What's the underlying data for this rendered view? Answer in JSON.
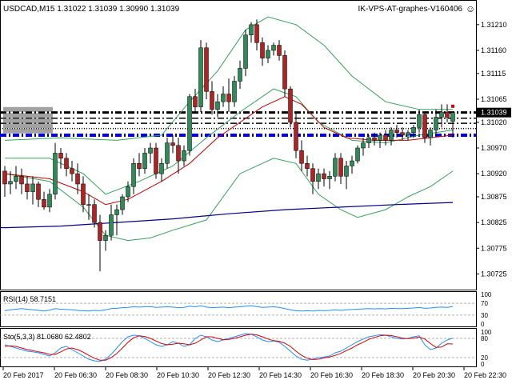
{
  "header": {
    "symbol_info": "USDCAD,M15  1.31022 1.31039 1.30990 1.31039",
    "indicator_name": "IK-VPS-AT-graphes-V160406",
    "smiley": "☺"
  },
  "rsi": {
    "label": "RSI(14) 58.7151"
  },
  "stoch": {
    "label": "Sto(5,3,3) 81.0680 62.4802"
  },
  "colors": {
    "bull": "#2e8b57",
    "bear": "#b22222",
    "bollinger": "#33a35a",
    "ma_fast": "#cc0000",
    "ma_slow": "#00008b",
    "rsi_line": "#1e90ff",
    "stoch_main": "#1e90ff",
    "stoch_signal": "#dd0000",
    "level_black": "#000000",
    "level_blue": "#0000ee"
  },
  "chart_data": [
    {
      "type": "candlestick",
      "title": "USDCAD,M15  1.31022 1.31039 1.30990 1.31039",
      "ylim": [
        1.3071,
        1.3123
      ],
      "y_ticks": [
        1.3121,
        1.3116,
        1.31115,
        1.31065,
        1.3102,
        1.3097,
        1.3092,
        1.30875,
        1.30825,
        1.30775,
        1.30725
      ],
      "current_price": "1.31039",
      "x_labels": [
        "20 Feb 2017",
        "20 Feb 06:30",
        "20 Feb 08:30",
        "20 Feb 10:30",
        "20 Feb 12:30",
        "20 Feb 14:30",
        "20 Feb 16:30",
        "20 Feb 18:30",
        "20 Feb 20:30",
        "20 Feb 22:30"
      ],
      "candles": [
        [
          1.30925,
          1.30935,
          1.30875,
          1.309
        ],
        [
          1.309,
          1.30925,
          1.3088,
          1.30905
        ],
        [
          1.30905,
          1.30935,
          1.3089,
          1.30915
        ],
        [
          1.30915,
          1.3093,
          1.3088,
          1.309
        ],
        [
          1.309,
          1.30915,
          1.3087,
          1.30885
        ],
        [
          1.30885,
          1.30915,
          1.3086,
          1.309
        ],
        [
          1.309,
          1.30905,
          1.30855,
          1.3087
        ],
        [
          1.3087,
          1.30885,
          1.3085,
          1.30855
        ],
        [
          1.30855,
          1.3089,
          1.30845,
          1.3088
        ],
        [
          1.3088,
          1.3098,
          1.3087,
          1.3096
        ],
        [
          1.3096,
          1.3097,
          1.3093,
          1.3095
        ],
        [
          1.3095,
          1.3096,
          1.30915,
          1.3093
        ],
        [
          1.3093,
          1.30945,
          1.30905,
          1.3092
        ],
        [
          1.3092,
          1.3094,
          1.3088,
          1.309
        ],
        [
          1.309,
          1.30915,
          1.30845,
          1.3086
        ],
        [
          1.3086,
          1.3088,
          1.3083,
          1.3086
        ],
        [
          1.3086,
          1.3087,
          1.30815,
          1.30825
        ],
        [
          1.30825,
          1.3084,
          1.3073,
          1.3079
        ],
        [
          1.3079,
          1.3081,
          1.3077,
          1.308
        ],
        [
          1.308,
          1.3086,
          1.3079,
          1.3084
        ],
        [
          1.3084,
          1.3086,
          1.308,
          1.3085
        ],
        [
          1.3085,
          1.3088,
          1.3084,
          1.30875
        ],
        [
          1.30875,
          1.30905,
          1.30865,
          1.30895
        ],
        [
          1.30895,
          1.3095,
          1.3088,
          1.3094
        ],
        [
          1.3094,
          1.3096,
          1.30915,
          1.3093
        ],
        [
          1.3093,
          1.3097,
          1.3092,
          1.3096
        ],
        [
          1.3096,
          1.3098,
          1.3094,
          1.3097
        ],
        [
          1.3097,
          1.3098,
          1.3091,
          1.3092
        ],
        [
          1.3092,
          1.3095,
          1.30905,
          1.3094
        ],
        [
          1.3094,
          1.3099,
          1.3093,
          1.3098
        ],
        [
          1.3098,
          1.30995,
          1.3096,
          1.30975
        ],
        [
          1.30975,
          1.3099,
          1.3092,
          1.30945
        ],
        [
          1.30945,
          1.30975,
          1.30935,
          1.30965
        ],
        [
          1.30965,
          1.31075,
          1.30955,
          1.3107
        ],
        [
          1.3107,
          1.31085,
          1.3104,
          1.3105
        ],
        [
          1.3105,
          1.3118,
          1.3104,
          1.31165
        ],
        [
          1.31165,
          1.31175,
          1.31065,
          1.3108
        ],
        [
          1.3108,
          1.311,
          1.31035,
          1.31045
        ],
        [
          1.31045,
          1.31075,
          1.3103,
          1.3106
        ],
        [
          1.3106,
          1.3109,
          1.3105,
          1.31075
        ],
        [
          1.31075,
          1.31105,
          1.3104,
          1.3106
        ],
        [
          1.3106,
          1.3111,
          1.3105,
          1.311
        ],
        [
          1.311,
          1.3114,
          1.31085,
          1.31125
        ],
        [
          1.31125,
          1.312,
          1.3111,
          1.3119
        ],
        [
          1.3119,
          1.31215,
          1.31175,
          1.3121
        ],
        [
          1.3121,
          1.3122,
          1.3116,
          1.31175
        ],
        [
          1.31175,
          1.31185,
          1.3113,
          1.31145
        ],
        [
          1.31145,
          1.3117,
          1.31135,
          1.3116
        ],
        [
          1.3116,
          1.31175,
          1.3115,
          1.3117
        ],
        [
          1.3117,
          1.3118,
          1.3114,
          1.3115
        ],
        [
          1.3115,
          1.3116,
          1.3107,
          1.31085
        ],
        [
          1.31085,
          1.3109,
          1.3101,
          1.3102
        ],
        [
          1.3102,
          1.3104,
          1.3095,
          1.30965
        ],
        [
          1.30965,
          1.30985,
          1.30925,
          1.3094
        ],
        [
          1.3094,
          1.30955,
          1.30915,
          1.3093
        ],
        [
          1.3093,
          1.3094,
          1.3088,
          1.30905
        ],
        [
          1.30905,
          1.3093,
          1.3089,
          1.3092
        ],
        [
          1.3092,
          1.3093,
          1.30895,
          1.3091
        ],
        [
          1.3091,
          1.30925,
          1.3089,
          1.30915
        ],
        [
          1.30915,
          1.3096,
          1.30905,
          1.3095
        ],
        [
          1.3095,
          1.3096,
          1.309,
          1.30915
        ],
        [
          1.30915,
          1.30945,
          1.3089,
          1.30935
        ],
        [
          1.30935,
          1.30955,
          1.3092,
          1.30945
        ],
        [
          1.30945,
          1.30975,
          1.3094,
          1.3097
        ],
        [
          1.3097,
          1.3099,
          1.30955,
          1.3098
        ],
        [
          1.3098,
          1.30995,
          1.3097,
          1.3099
        ],
        [
          1.3099,
          1.31,
          1.30975,
          1.30985
        ],
        [
          1.30985,
          1.31,
          1.3097,
          1.30995
        ],
        [
          1.30995,
          1.31005,
          1.30975,
          1.30985
        ],
        [
          1.30985,
          1.3101,
          1.30975,
          1.31005
        ],
        [
          1.31005,
          1.31015,
          1.3099,
          1.31
        ],
        [
          1.31,
          1.3101,
          1.30985,
          1.30995
        ],
        [
          1.30995,
          1.31005,
          1.30985,
          1.31
        ],
        [
          1.31,
          1.31015,
          1.3099,
          1.3101
        ],
        [
          1.3101,
          1.31045,
          1.31,
          1.31035
        ],
        [
          1.31035,
          1.3104,
          1.3098,
          1.3099
        ],
        [
          1.3099,
          1.3101,
          1.30975,
          1.31005
        ],
        [
          1.31005,
          1.31045,
          1.30995,
          1.3103
        ],
        [
          1.3103,
          1.31055,
          1.3101,
          1.3104
        ],
        [
          1.3104,
          1.31055,
          1.3102,
          1.3103
        ],
        [
          1.31022,
          1.31039,
          1.3099,
          1.31039
        ]
      ],
      "overlays": {
        "bollinger_upper": [
          [
            0,
            1.30985
          ],
          [
            10,
            1.3099
          ],
          [
            20,
            1.30985
          ],
          [
            28,
            1.30995
          ],
          [
            33,
            1.3106
          ],
          [
            38,
            1.3112
          ],
          [
            43,
            1.312
          ],
          [
            47,
            1.31225
          ],
          [
            52,
            1.3121
          ],
          [
            57,
            1.3117
          ],
          [
            62,
            1.3111
          ],
          [
            68,
            1.3106
          ],
          [
            74,
            1.31045
          ],
          [
            80,
            1.31045
          ]
        ],
        "bollinger_middle": [
          [
            0,
            1.3095
          ],
          [
            8,
            1.3095
          ],
          [
            14,
            1.3092
          ],
          [
            18,
            1.3088
          ],
          [
            24,
            1.30905
          ],
          [
            30,
            1.30935
          ],
          [
            36,
            1.3099
          ],
          [
            42,
            1.3104
          ],
          [
            48,
            1.31085
          ],
          [
            52,
            1.3107
          ],
          [
            56,
            1.3102
          ],
          [
            62,
            1.30985
          ],
          [
            68,
            1.3098
          ],
          [
            74,
            1.30995
          ],
          [
            80,
            1.31005
          ]
        ],
        "bollinger_lower": [
          [
            0,
            1.3092
          ],
          [
            8,
            1.30905
          ],
          [
            14,
            1.30855
          ],
          [
            18,
            1.308
          ],
          [
            22,
            1.3079
          ],
          [
            26,
            1.30795
          ],
          [
            30,
            1.3081
          ],
          [
            36,
            1.3083
          ],
          [
            42,
            1.3092
          ],
          [
            48,
            1.3095
          ],
          [
            52,
            1.3094
          ],
          [
            56,
            1.3088
          ],
          [
            60,
            1.3085
          ],
          [
            63,
            1.30835
          ],
          [
            68,
            1.3085
          ],
          [
            72,
            1.30875
          ],
          [
            76,
            1.30895
          ],
          [
            80,
            1.30925
          ]
        ],
        "ma_fast": [
          [
            0,
            1.3092
          ],
          [
            8,
            1.3091
          ],
          [
            14,
            1.30885
          ],
          [
            18,
            1.3086
          ],
          [
            22,
            1.3087
          ],
          [
            28,
            1.30905
          ],
          [
            33,
            1.3094
          ],
          [
            38,
            1.3099
          ],
          [
            42,
            1.3102
          ],
          [
            46,
            1.3105
          ],
          [
            50,
            1.3107
          ],
          [
            53,
            1.31055
          ],
          [
            57,
            1.3101
          ],
          [
            61,
            1.3099
          ],
          [
            66,
            1.30985
          ],
          [
            72,
            1.30985
          ],
          [
            80,
            1.30995
          ]
        ],
        "ma_slow": [
          [
            0,
            1.30815
          ],
          [
            10,
            1.30818
          ],
          [
            20,
            1.30825
          ],
          [
            30,
            1.30832
          ],
          [
            40,
            1.30842
          ],
          [
            50,
            1.3085
          ],
          [
            60,
            1.30855
          ],
          [
            70,
            1.3086
          ],
          [
            80,
            1.30864
          ]
        ]
      },
      "levels": [
        {
          "price": 1.31039,
          "style": "dash-dot",
          "color": "#000000"
        },
        {
          "price": 1.31028,
          "style": "dash-dot",
          "color": "#000000"
        },
        {
          "price": 1.31018,
          "style": "dash-dot",
          "color": "#000000"
        },
        {
          "price": 1.31008,
          "style": "dotted",
          "color": "#000000"
        },
        {
          "price": 1.30995,
          "style": "dash-dot",
          "color": "#0000ee"
        }
      ]
    },
    {
      "type": "line",
      "title": "RSI(14) 58.7151",
      "ylim": [
        0,
        100
      ],
      "levels": [
        70,
        30
      ],
      "tick_labels": [
        "100",
        "70",
        "30",
        "0"
      ],
      "series": [
        {
          "name": "RSI(14)",
          "values": [
            45,
            48,
            50,
            52,
            50,
            48,
            46,
            44,
            47,
            52,
            50,
            49,
            48,
            46,
            45,
            44,
            46,
            45,
            48,
            52,
            53,
            55,
            56,
            58,
            57,
            58,
            59,
            56,
            57,
            58,
            57,
            55,
            56,
            60,
            58,
            62,
            57,
            55,
            56,
            57,
            55,
            57,
            58,
            60,
            62,
            59,
            56,
            57,
            58,
            56,
            52,
            48,
            45,
            44,
            45,
            44,
            46,
            45,
            46,
            48,
            46,
            48,
            49,
            50,
            51,
            52,
            51,
            52,
            51,
            53,
            52,
            52,
            53,
            54,
            56,
            53,
            54,
            56,
            57,
            56,
            58.7
          ]
        }
      ]
    },
    {
      "type": "line",
      "title": "Sto(5,3,3) 81.0680 62.4802",
      "ylim": [
        0,
        100
      ],
      "levels": [
        80,
        20
      ],
      "tick_labels": [
        "100",
        "80",
        "20",
        "0"
      ],
      "series": [
        {
          "name": "Sto main",
          "values": [
            60,
            55,
            50,
            45,
            40,
            38,
            35,
            30,
            25,
            35,
            50,
            55,
            45,
            35,
            25,
            15,
            10,
            8,
            15,
            30,
            50,
            70,
            85,
            90,
            88,
            80,
            70,
            60,
            55,
            60,
            70,
            65,
            55,
            60,
            80,
            90,
            85,
            75,
            70,
            75,
            80,
            85,
            90,
            95,
            93,
            85,
            75,
            70,
            72,
            68,
            55,
            40,
            25,
            15,
            12,
            15,
            20,
            22,
            25,
            35,
            40,
            50,
            60,
            70,
            78,
            85,
            88,
            92,
            90,
            85,
            80,
            78,
            80,
            85,
            88,
            60,
            45,
            50,
            65,
            75,
            81.07
          ]
        },
        {
          "name": "Sto signal",
          "values": [
            55,
            57,
            55,
            50,
            45,
            42,
            38,
            35,
            30,
            30,
            38,
            47,
            50,
            45,
            37,
            27,
            18,
            12,
            12,
            20,
            33,
            50,
            68,
            82,
            88,
            86,
            80,
            72,
            64,
            60,
            62,
            65,
            63,
            60,
            65,
            75,
            85,
            85,
            80,
            76,
            77,
            80,
            85,
            90,
            93,
            91,
            85,
            78,
            73,
            71,
            65,
            55,
            40,
            27,
            18,
            14,
            15,
            19,
            22,
            27,
            33,
            42,
            50,
            60,
            68,
            77,
            83,
            88,
            90,
            89,
            85,
            81,
            79,
            81,
            84,
            78,
            64,
            52,
            53,
            63,
            62.48
          ]
        }
      ]
    }
  ]
}
